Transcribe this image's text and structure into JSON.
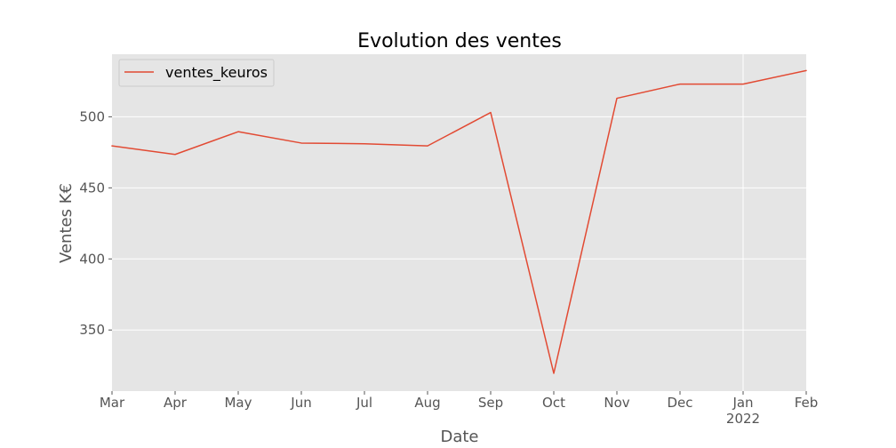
{
  "chart_data": {
    "type": "line",
    "title": "Evolution des ventes",
    "xlabel": "Date",
    "ylabel": "Ventes K€",
    "categories": [
      "Mar",
      "Apr",
      "May",
      "Jun",
      "Jul",
      "Aug",
      "Sep",
      "Oct",
      "Nov",
      "Dec",
      "Jan",
      "Feb"
    ],
    "year_labels": [
      {
        "index": 10,
        "label": "2022"
      }
    ],
    "series": [
      {
        "name": "ventes_keuros",
        "color": "#E24A33",
        "values": [
          479.5,
          473.5,
          489.5,
          481.5,
          481.0,
          479.5,
          503.0,
          319.5,
          513.0,
          523.0,
          523.0,
          532.5
        ]
      }
    ],
    "ylim": [
      307,
      544
    ],
    "yticks": [
      350,
      400,
      450,
      500
    ],
    "grid": true,
    "legend_position": "upper-left",
    "colors": {
      "plot_background": "#E5E5E5",
      "grid": "#FFFFFF",
      "line": "#E24A33"
    }
  }
}
